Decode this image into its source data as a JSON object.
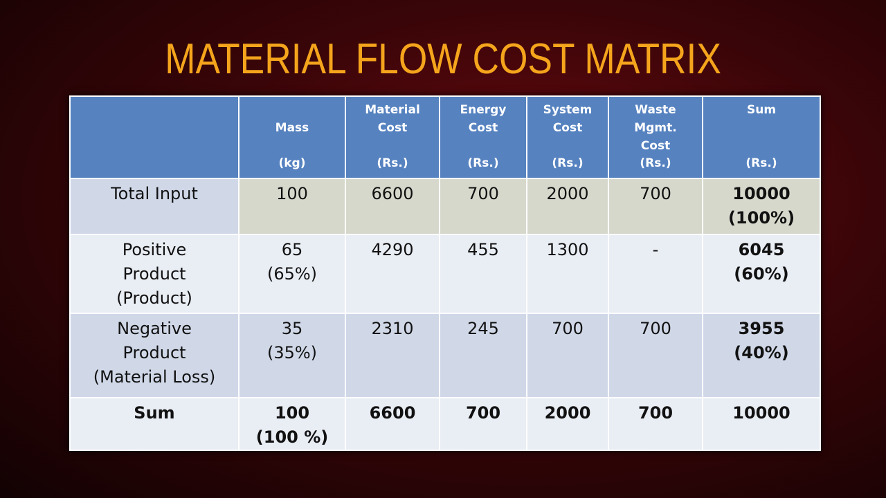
{
  "title": "MATERIAL FLOW COST MATRIX",
  "table": {
    "header": [
      {
        "name": [
          "Mass"
        ],
        "unit": "(kg)"
      },
      {
        "name": [
          "Material",
          "Cost"
        ],
        "unit": "(Rs.)"
      },
      {
        "name": [
          "Energy",
          "Cost"
        ],
        "unit": "(Rs.)"
      },
      {
        "name": [
          "System",
          "Cost"
        ],
        "unit": "(Rs.)"
      },
      {
        "name": [
          "Waste",
          "Mgmt.",
          "Cost"
        ],
        "unit": "(Rs.)"
      },
      {
        "name": [
          "Sum"
        ],
        "unit": "(Rs.)"
      }
    ],
    "rows": [
      {
        "label": [
          "Total Input"
        ],
        "cells": [
          [
            "100"
          ],
          [
            "6600"
          ],
          [
            "700"
          ],
          [
            "2000"
          ],
          [
            "700"
          ],
          [
            "10000",
            "(100%)"
          ]
        ]
      },
      {
        "label": [
          "Positive",
          "Product",
          "(Product)"
        ],
        "cells": [
          [
            "65",
            "(65%)"
          ],
          [
            "4290"
          ],
          [
            "455"
          ],
          [
            "1300"
          ],
          [
            "-"
          ],
          [
            "6045",
            "(60%)"
          ]
        ]
      },
      {
        "label": [
          "Negative",
          "Product",
          "(Material Loss)"
        ],
        "cells": [
          [
            "35",
            "(35%)"
          ],
          [
            "2310"
          ],
          [
            "245"
          ],
          [
            "700"
          ],
          [
            "700"
          ],
          [
            "3955",
            "(40%)"
          ]
        ]
      },
      {
        "label": [
          "Sum"
        ],
        "cells": [
          [
            "100",
            "(100 %)"
          ],
          [
            "6600"
          ],
          [
            "700"
          ],
          [
            "2000"
          ],
          [
            "700"
          ],
          [
            "10000"
          ]
        ]
      }
    ]
  }
}
